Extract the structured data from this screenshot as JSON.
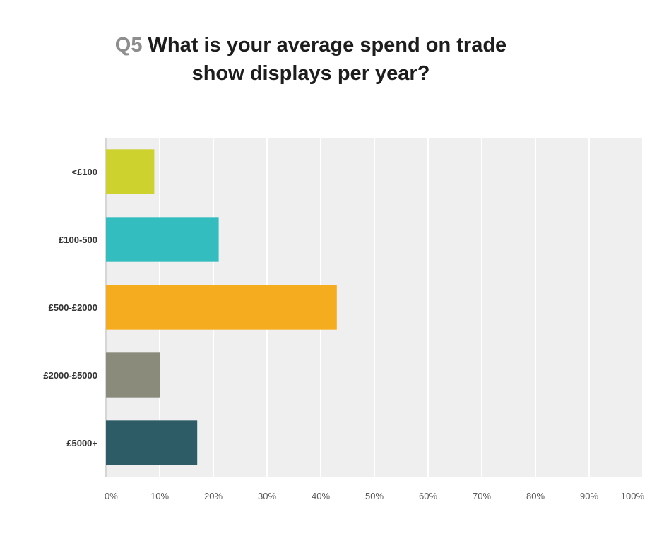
{
  "chart_data": {
    "type": "bar",
    "orientation": "horizontal",
    "title_prefix": "Q5",
    "title_line1": "What is your average spend on trade",
    "title_line2": "show displays per year?",
    "categories": [
      "<£100",
      "£100-500",
      "£500-£2000",
      "£2000-£5000",
      "£5000+"
    ],
    "values": [
      9,
      21,
      43,
      10,
      17
    ],
    "unit": "%",
    "xlim": [
      0,
      100
    ],
    "x_ticks": [
      "0%",
      "10%",
      "20%",
      "30%",
      "40%",
      "50%",
      "60%",
      "70%",
      "80%",
      "90%",
      "100%"
    ],
    "grid": true,
    "colors": [
      "#cdd22e",
      "#33bdbf",
      "#f5ad1f",
      "#8a8b7a",
      "#2e5c66"
    ],
    "background_color": "#efefef",
    "gridline_color": "#ffffff"
  }
}
